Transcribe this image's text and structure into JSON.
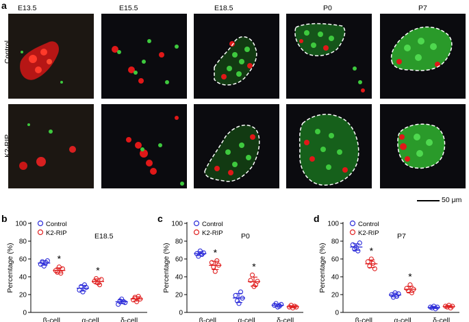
{
  "figure": {
    "panel_a": {
      "letter": "a",
      "columns": [
        "E13.5",
        "E15.5",
        "E18.5",
        "P0",
        "P7"
      ],
      "rows": [
        "Control",
        "K2-RIP"
      ],
      "scale_bar": "50 μm"
    }
  },
  "colors": {
    "control": "#2b2bd9",
    "k2rip": "#e02020",
    "green_stain": "#3ec93e",
    "red_stain": "#e01818"
  },
  "chart_data": [
    {
      "panel": "b",
      "type": "scatter",
      "title": "E18.5",
      "ylabel": "Percentage (%)",
      "ylim": [
        0,
        100
      ],
      "yticks": [
        0,
        20,
        40,
        60,
        80,
        100
      ],
      "categories": [
        "β-cell",
        "α-cell",
        "δ-cell"
      ],
      "legend": [
        "Control",
        "K2-RIP"
      ],
      "significance": [
        "*",
        "*",
        ""
      ],
      "series": [
        {
          "name": "Control",
          "points": [
            [
              54,
              57,
              52,
              56,
              58
            ],
            [
              25,
              29,
              23,
              31,
              28
            ],
            [
              9,
              13,
              15,
              12,
              11
            ]
          ]
        },
        {
          "name": "K2-RIP",
          "points": [
            [
              47,
              45,
              51,
              44,
              49
            ],
            [
              35,
              38,
              33,
              31,
              37
            ],
            [
              14,
              17,
              12,
              18,
              15
            ]
          ]
        }
      ]
    },
    {
      "panel": "c",
      "type": "scatter",
      "title": "P0",
      "ylabel": "Percentage (%)",
      "ylim": [
        0,
        100
      ],
      "yticks": [
        0,
        20,
        40,
        60,
        80,
        100
      ],
      "categories": [
        "β-cell",
        "α-cell",
        "δ-cell"
      ],
      "legend": [
        "Control",
        "K2-RIP"
      ],
      "significance": [
        "*",
        "*",
        ""
      ],
      "series": [
        {
          "name": "Control",
          "points": [
            [
              66,
              63,
              69,
              65,
              67
            ],
            [
              19,
              13,
              10,
              23,
              16
            ],
            [
              8,
              10,
              6,
              7,
              9
            ]
          ]
        },
        {
          "name": "K2-RIP",
          "points": [
            [
              56,
              51,
              46,
              58,
              53
            ],
            [
              36,
              42,
              29,
              31,
              35
            ],
            [
              6,
              8,
              5,
              7,
              6
            ]
          ]
        }
      ]
    },
    {
      "panel": "d",
      "type": "scatter",
      "title": "P7",
      "ylabel": "Percentage (%)",
      "ylim": [
        0,
        100
      ],
      "yticks": [
        0,
        20,
        40,
        60,
        80,
        100
      ],
      "categories": [
        "β-cell",
        "α-cell",
        "δ-cell"
      ],
      "legend": [
        "Control",
        "K2-RIP"
      ],
      "significance": [
        "*",
        "*",
        ""
      ],
      "series": [
        {
          "name": "Control",
          "points": [
            [
              76,
              71,
              73,
              69,
              78
            ],
            [
              20,
              17,
              22,
              18,
              21
            ],
            [
              6,
              5,
              7,
              4,
              6
            ]
          ]
        },
        {
          "name": "K2-RIP",
          "points": [
            [
              57,
              52,
              60,
              55,
              49
            ],
            [
              27,
              24,
              31,
              22,
              26
            ],
            [
              7,
              6,
              8,
              5,
              7
            ]
          ]
        }
      ]
    }
  ]
}
